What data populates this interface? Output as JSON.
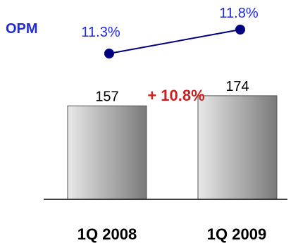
{
  "chart_data": [
    {
      "type": "line",
      "series_label": "OPM",
      "categories": [
        "1Q 2008",
        "1Q 2009"
      ],
      "values": [
        11.3,
        11.8
      ],
      "value_labels": [
        "11.3%",
        "11.8%"
      ],
      "ylim": [
        10.9,
        11.9
      ],
      "colors": {
        "line": "#000080",
        "label_text": "#1f2ad6",
        "series_label": "#1f2ad6"
      }
    },
    {
      "type": "bar",
      "categories": [
        "1Q 2008",
        "1Q 2009"
      ],
      "values": [
        157,
        174
      ],
      "value_labels": [
        "157",
        "174"
      ],
      "growth_label": "+ 10.8%",
      "ylim": [
        0,
        200
      ],
      "colors": {
        "bar_light": "#e8e8e8",
        "bar_dark": "#7a7a7a",
        "growth": "#cc1f1f",
        "axis": "#000000"
      }
    }
  ]
}
